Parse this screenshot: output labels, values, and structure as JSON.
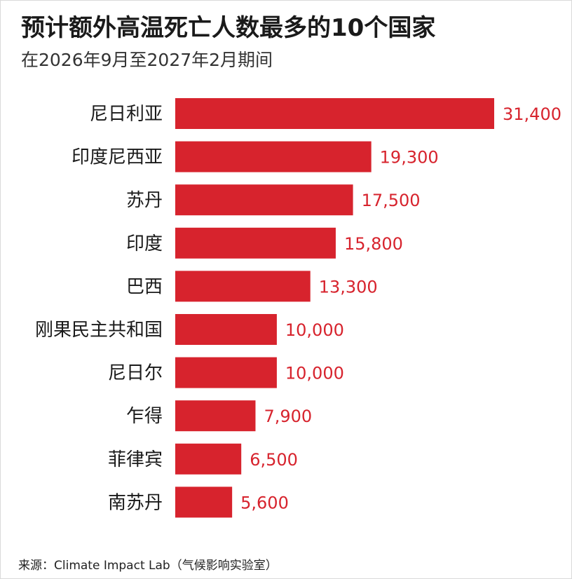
{
  "chart_data": {
    "type": "bar",
    "orientation": "horizontal",
    "title": "预计额外高温死亡人数最多的10个国家",
    "subtitle": "在2026年9月至2027年2月期间",
    "categories": [
      "尼日利亚",
      "印度尼西亚",
      "苏丹",
      "印度",
      "巴西",
      "刚果民主共和国",
      "尼日尔",
      "乍得",
      "菲律宾",
      "南苏丹"
    ],
    "values": [
      31400,
      19300,
      17500,
      15800,
      13300,
      10000,
      10000,
      7900,
      6500,
      5600
    ],
    "data_labels": [
      "31,400",
      "19,300",
      "17,500",
      "15,800",
      "13,300",
      "10,000",
      "10,000",
      "7,900",
      "6,500",
      "5,600"
    ],
    "xlim": [
      0,
      31400
    ],
    "grid": false,
    "legend": "none",
    "bar_color": "#d7232d",
    "label_color": "#d7232d"
  },
  "source": "来源：Climate Impact Lab（气候影响实验室）"
}
